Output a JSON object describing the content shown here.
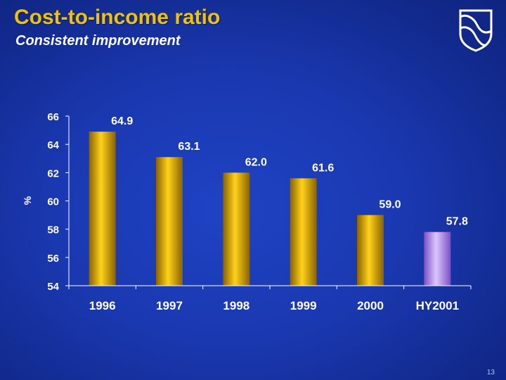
{
  "slide": {
    "title": "Cost-to-income ratio",
    "subtitle": "Consistent improvement",
    "page_number": "13"
  },
  "colors": {
    "title": "#f2c200",
    "bar_gold": "#e6b400",
    "bar_highlight": "#c7a6f0",
    "axis": "#ffffff",
    "background": "#1a38b0"
  },
  "icons": {
    "logo": "shield-logo-icon"
  },
  "chart_data": {
    "type": "bar",
    "categories": [
      "1996",
      "1997",
      "1998",
      "1999",
      "2000",
      "HY2001"
    ],
    "values": [
      64.9,
      63.1,
      62.0,
      61.6,
      59.0,
      57.8
    ],
    "value_labels": [
      "64.9",
      "63.1",
      "62.0",
      "61.6",
      "59.0",
      "57.8"
    ],
    "ylabel": "%",
    "xlabel": "",
    "ylim": [
      54,
      66
    ],
    "yticks": [
      54,
      56,
      58,
      60,
      62,
      64,
      66
    ],
    "highlight_index": 5,
    "grid": false,
    "legend": "none"
  }
}
